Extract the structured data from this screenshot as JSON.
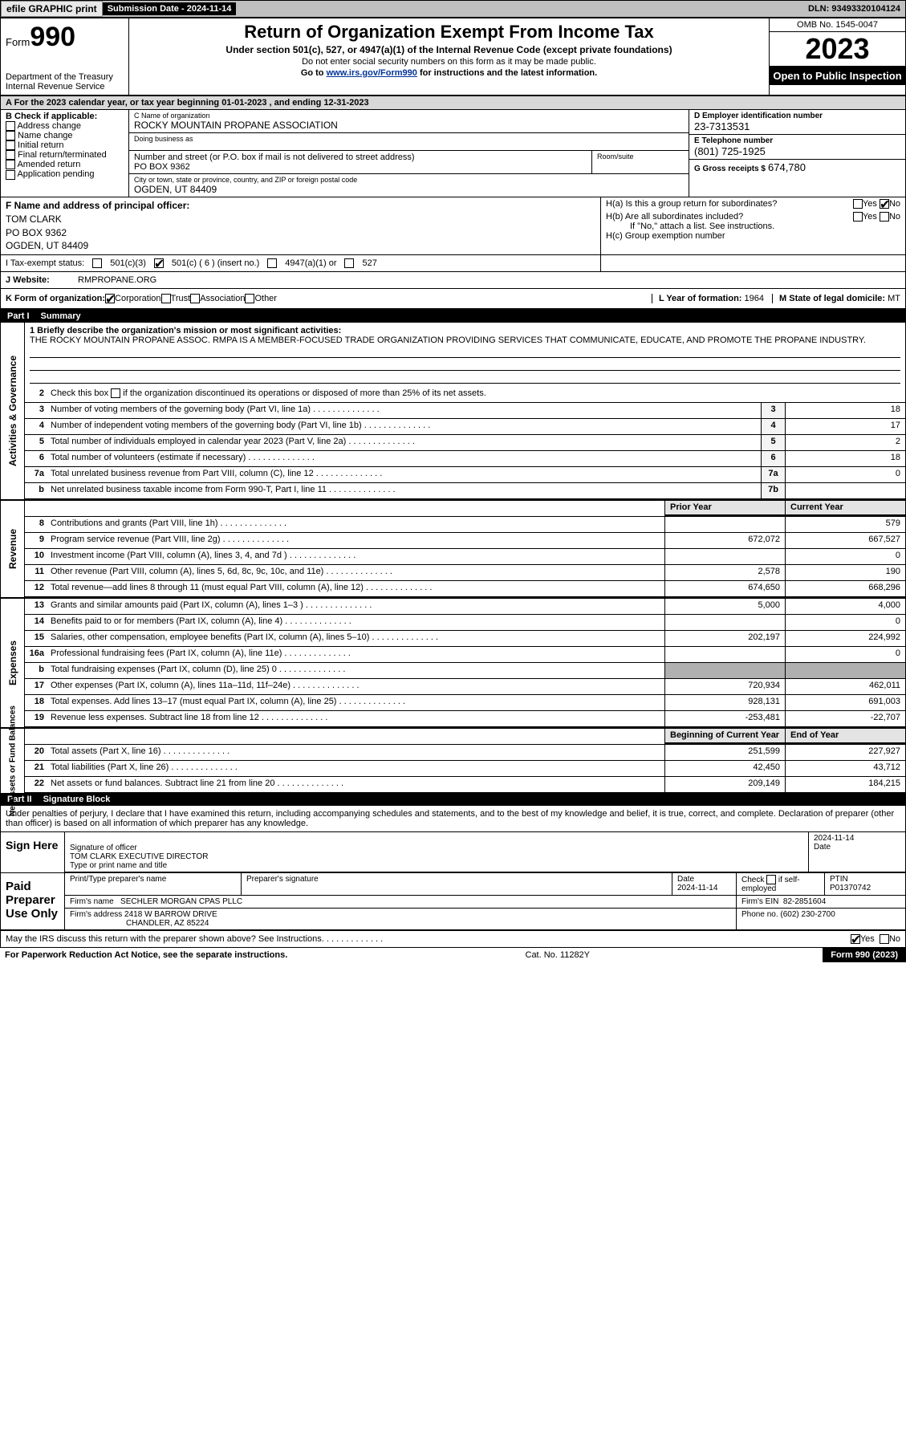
{
  "topbar": {
    "efile": "efile GRAPHIC print",
    "submission": "Submission Date - 2024-11-14",
    "dln": "DLN: 93493320104124"
  },
  "header": {
    "form_word": "Form",
    "form_no": "990",
    "dept": "Department of the Treasury\nInternal Revenue Service",
    "title": "Return of Organization Exempt From Income Tax",
    "sub": "Under section 501(c), 527, or 4947(a)(1) of the Internal Revenue Code (except private foundations)",
    "note1": "Do not enter social security numbers on this form as it may be made public.",
    "note2_pre": "Go to ",
    "note2_link": "www.irs.gov/Form990",
    "note2_post": " for instructions and the latest information.",
    "omb": "OMB No. 1545-0047",
    "year": "2023",
    "inspection": "Open to Public Inspection"
  },
  "cal_line": "A For the 2023 calendar year, or tax year beginning 01-01-2023   , and ending 12-31-2023",
  "sec_b": {
    "lbl": "B Check if applicable:",
    "opts": [
      "Address change",
      "Name change",
      "Initial return",
      "Final return/terminated",
      "Amended return",
      "Application pending"
    ]
  },
  "sec_c": {
    "name_lbl": "C Name of organization",
    "name": "ROCKY MOUNTAIN PROPANE ASSOCIATION",
    "dba_lbl": "Doing business as",
    "dba": "",
    "street_lbl": "Number and street (or P.O. box if mail is not delivered to street address)",
    "street": "PO BOX 9362",
    "suite_lbl": "Room/suite",
    "suite": "",
    "city_lbl": "City or town, state or province, country, and ZIP or foreign postal code",
    "city": "OGDEN, UT  84409"
  },
  "sec_d": {
    "ein_lbl": "D Employer identification number",
    "ein": "23-7313531",
    "tel_lbl": "E Telephone number",
    "tel": "(801) 725-1925",
    "gross_lbl": "G Gross receipts $",
    "gross": "674,780"
  },
  "sec_f": {
    "lbl": "F  Name and address of principal officer:",
    "name": "TOM CLARK",
    "addr1": "PO BOX 9362",
    "addr2": "OGDEN, UT  84409"
  },
  "sec_h": {
    "ha": "H(a)  Is this a group return for subordinates?",
    "hb": "H(b)  Are all subordinates included?",
    "hb_note": "If \"No,\" attach a list. See instructions.",
    "hc": "H(c)  Group exemption number",
    "yes": "Yes",
    "no": "No"
  },
  "tax_status": {
    "lbl": "I   Tax-exempt status:",
    "o1": "501(c)(3)",
    "o2": "501(c) ( 6 ) (insert no.)",
    "o3": "4947(a)(1) or",
    "o4": "527"
  },
  "web": {
    "lbl": "J   Website:",
    "val": "RMPROPANE.ORG"
  },
  "k_org": {
    "lbl": "K Form of organization:",
    "opts": [
      "Corporation",
      "Trust",
      "Association",
      "Other"
    ],
    "year_lbl": "L Year of formation:",
    "year": "1964",
    "state_lbl": "M State of legal domicile:",
    "state": "MT"
  },
  "part1": {
    "hdr_num": "Part I",
    "hdr_txt": "Summary"
  },
  "mission": {
    "lbl": "1   Briefly describe the organization's mission or most significant activities:",
    "txt": "THE ROCKY MOUNTAIN PROPANE ASSOC. RMPA IS A MEMBER-FOCUSED TRADE ORGANIZATION PROVIDING SERVICES THAT COMMUNICATE, EDUCATE, AND PROMOTE THE PROPANE INDUSTRY."
  },
  "line2": "Check this box        if the organization discontinued its operations or disposed of more than 25% of its net assets.",
  "gov_section_label": "Activities & Governance",
  "gov_lines": [
    {
      "n": "3",
      "t": "Number of voting members of the governing body (Part VI, line 1a)",
      "box": "3",
      "v": "18"
    },
    {
      "n": "4",
      "t": "Number of independent voting members of the governing body (Part VI, line 1b)",
      "box": "4",
      "v": "17"
    },
    {
      "n": "5",
      "t": "Total number of individuals employed in calendar year 2023 (Part V, line 2a)",
      "box": "5",
      "v": "2"
    },
    {
      "n": "6",
      "t": "Total number of volunteers (estimate if necessary)",
      "box": "6",
      "v": "18"
    },
    {
      "n": "7a",
      "t": "Total unrelated business revenue from Part VIII, column (C), line 12",
      "box": "7a",
      "v": "0"
    },
    {
      "n": "b",
      "t": "Net unrelated business taxable income from Form 990-T, Part I, line 11",
      "box": "7b",
      "v": ""
    }
  ],
  "twocol_hdr": {
    "prior": "Prior Year",
    "curr": "Current Year"
  },
  "rev_section_label": "Revenue",
  "rev_lines": [
    {
      "n": "8",
      "t": "Contributions and grants (Part VIII, line 1h)",
      "p": "",
      "c": "579"
    },
    {
      "n": "9",
      "t": "Program service revenue (Part VIII, line 2g)",
      "p": "672,072",
      "c": "667,527"
    },
    {
      "n": "10",
      "t": "Investment income (Part VIII, column (A), lines 3, 4, and 7d )",
      "p": "",
      "c": "0"
    },
    {
      "n": "11",
      "t": "Other revenue (Part VIII, column (A), lines 5, 6d, 8c, 9c, 10c, and 11e)",
      "p": "2,578",
      "c": "190"
    },
    {
      "n": "12",
      "t": "Total revenue—add lines 8 through 11 (must equal Part VIII, column (A), line 12)",
      "p": "674,650",
      "c": "668,296"
    }
  ],
  "exp_section_label": "Expenses",
  "exp_lines": [
    {
      "n": "13",
      "t": "Grants and similar amounts paid (Part IX, column (A), lines 1–3 )",
      "p": "5,000",
      "c": "4,000"
    },
    {
      "n": "14",
      "t": "Benefits paid to or for members (Part IX, column (A), line 4)",
      "p": "",
      "c": "0"
    },
    {
      "n": "15",
      "t": "Salaries, other compensation, employee benefits (Part IX, column (A), lines 5–10)",
      "p": "202,197",
      "c": "224,992"
    },
    {
      "n": "16a",
      "t": "Professional fundraising fees (Part IX, column (A), line 11e)",
      "p": "",
      "c": "0"
    },
    {
      "n": "b",
      "t": "Total fundraising expenses (Part IX, column (D), line 25) 0",
      "p": "shade",
      "c": "shade"
    },
    {
      "n": "17",
      "t": "Other expenses (Part IX, column (A), lines 11a–11d, 11f–24e)",
      "p": "720,934",
      "c": "462,011"
    },
    {
      "n": "18",
      "t": "Total expenses. Add lines 13–17 (must equal Part IX, column (A), line 25)",
      "p": "928,131",
      "c": "691,003"
    },
    {
      "n": "19",
      "t": "Revenue less expenses. Subtract line 18 from line 12",
      "p": "-253,481",
      "c": "-22,707"
    }
  ],
  "net_section_label": "Net Assets or Fund Balances",
  "net_hdr": {
    "p": "Beginning of Current Year",
    "c": "End of Year"
  },
  "net_lines": [
    {
      "n": "20",
      "t": "Total assets (Part X, line 16)",
      "p": "251,599",
      "c": "227,927"
    },
    {
      "n": "21",
      "t": "Total liabilities (Part X, line 26)",
      "p": "42,450",
      "c": "43,712"
    },
    {
      "n": "22",
      "t": "Net assets or fund balances. Subtract line 21 from line 20",
      "p": "209,149",
      "c": "184,215"
    }
  ],
  "part2": {
    "hdr_num": "Part II",
    "hdr_txt": "Signature Block"
  },
  "sig_dec": "Under penalties of perjury, I declare that I have examined this return, including accompanying schedules and statements, and to the best of my knowledge and belief, it is true, correct, and complete. Declaration of preparer (other than officer) is based on all information of which preparer has any knowledge.",
  "sign_here": {
    "lbl": "Sign Here",
    "sig_lbl": "Signature of officer",
    "name": "TOM CLARK EXECUTIVE DIRECTOR",
    "name_lbl": "Type or print name and title",
    "date_lbl": "Date",
    "date": "2024-11-14"
  },
  "paid_prep": {
    "lbl": "Paid Preparer Use Only",
    "r1_l1": "Print/Type preparer's name",
    "r1_l2": "Preparer's signature",
    "r1_date_lbl": "Date",
    "r1_date": "2024-11-14",
    "r1_chk": "Check        if self-employed",
    "r1_ptin_lbl": "PTIN",
    "r1_ptin": "P01370742",
    "r2_name_lbl": "Firm's name",
    "r2_name": "SECHLER MORGAN CPAS PLLC",
    "r2_ein_lbl": "Firm's EIN",
    "r2_ein": "82-2851604",
    "r3_addr_lbl": "Firm's address",
    "r3_addr1": "2418 W BARROW DRIVE",
    "r3_addr2": "CHANDLER, AZ  85224",
    "r3_phone_lbl": "Phone no.",
    "r3_phone": "(602) 230-2700"
  },
  "may_irs": {
    "txt": "May the IRS discuss this return with the preparer shown above? See Instructions.",
    "yes": "Yes",
    "no": "No"
  },
  "footer": {
    "pra": "For Paperwork Reduction Act Notice, see the separate instructions.",
    "cat": "Cat. No. 11282Y",
    "form": "Form 990 (2023)"
  }
}
